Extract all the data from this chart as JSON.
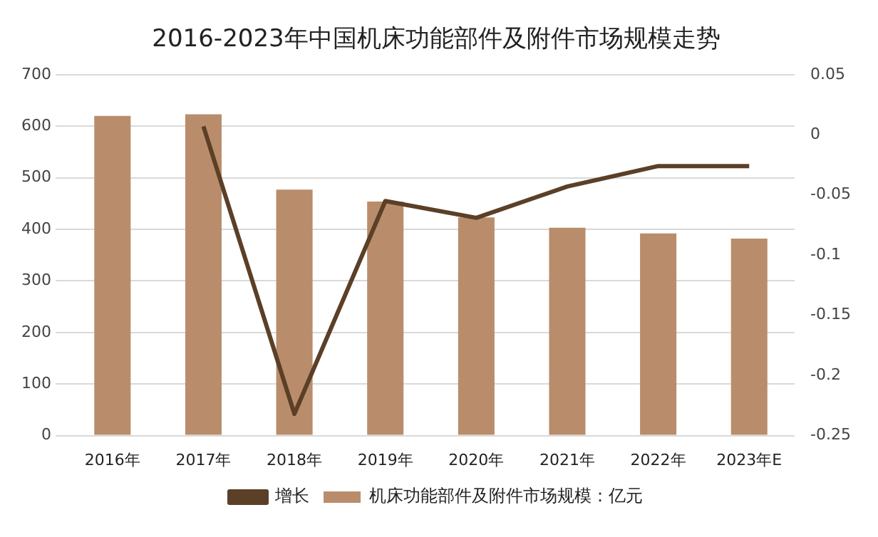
{
  "chart_data": {
    "type": "bar",
    "title": "2016-2023年中国机床功能部件及附件市场规模走势",
    "categories": [
      "2016年",
      "2017年",
      "2018年",
      "2019年",
      "2020年",
      "2021年",
      "2022年",
      "2023年E"
    ],
    "series": [
      {
        "name": "机床功能部件及附件市场规模：亿元",
        "color": "#b98d6b",
        "values": [
          620,
          623,
          477,
          454,
          423,
          403,
          392,
          382
        ]
      },
      {
        "name": "增长",
        "type": "line",
        "axis": "y2",
        "color": "#5b3f27",
        "values": [
          null,
          0.007,
          -0.232,
          -0.055,
          -0.069,
          -0.043,
          -0.026,
          -0.026
        ]
      }
    ],
    "ylim": [
      0,
      700
    ],
    "yticks": [
      0,
      100,
      200,
      300,
      400,
      500,
      600,
      700
    ],
    "y2lim": [
      -0.25,
      0.05
    ],
    "y2ticks": [
      -0.25,
      -0.2,
      -0.15,
      -0.1,
      -0.05,
      0,
      0.05
    ],
    "grid": "y",
    "legend": "bottom",
    "marker": "none"
  }
}
